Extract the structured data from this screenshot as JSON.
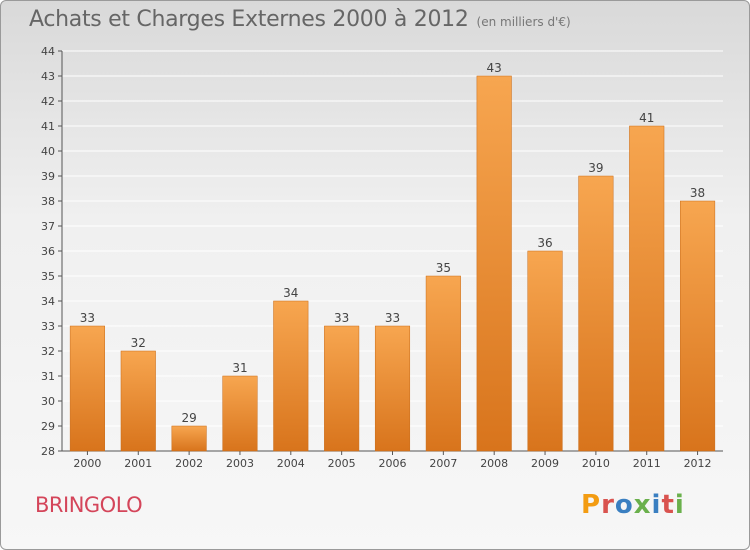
{
  "header": {
    "title": "Achats et Charges Externes 2000 à 2012",
    "unit": "(en milliers d'€)"
  },
  "footer": {
    "commune": "BRINGOLO",
    "brand": "Proxiti"
  },
  "colors": {
    "bar_light": "#f7a650",
    "bar_dark": "#d8741c",
    "grid": "#ffffff",
    "commune": "#d4455a",
    "brand_letters": [
      "#f39c12",
      "#d9534f",
      "#3a7fc1",
      "#6ab04c",
      "#3a7fc1",
      "#d9534f",
      "#6ab04c"
    ]
  },
  "chart_data": {
    "type": "bar",
    "title": "Achats et Charges Externes 2000 à 2012",
    "subtitle": "(en milliers d'€)",
    "categories": [
      "2000",
      "2001",
      "2002",
      "2003",
      "2004",
      "2005",
      "2006",
      "2007",
      "2008",
      "2009",
      "2010",
      "2011",
      "2012"
    ],
    "values": [
      33,
      32,
      29,
      31,
      34,
      33,
      33,
      35,
      43,
      36,
      39,
      41,
      38
    ],
    "data_labels": [
      "33",
      "32",
      "29",
      "31",
      "34",
      "33",
      "33",
      "35",
      "43",
      "36",
      "39",
      "41",
      "38"
    ],
    "y_ticks": [
      28,
      29,
      30,
      31,
      32,
      33,
      34,
      35,
      36,
      37,
      38,
      39,
      40,
      41,
      42,
      43,
      44
    ],
    "y_tick_labels": [
      "28",
      "29",
      "30",
      "31",
      "32",
      "33",
      "34",
      "35",
      "36",
      "37",
      "38",
      "39",
      "40",
      "41",
      "42",
      "43",
      "44"
    ],
    "ylim": [
      28,
      44
    ],
    "xlabel": "",
    "ylabel": "",
    "grid": true,
    "legend": "none"
  }
}
